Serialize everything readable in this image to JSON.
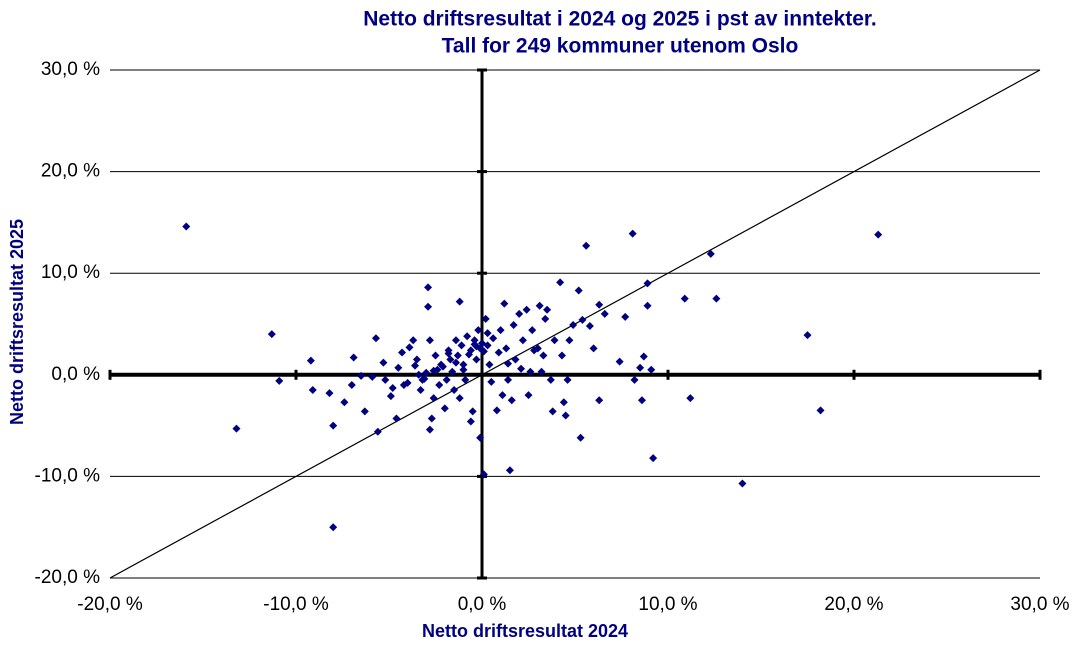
{
  "chart_data": {
    "type": "scatter",
    "title": [
      "Netto driftsresultat i 2024 og 2025 i pst av inntekter.",
      "Tall for 249 kommuner utenom Oslo"
    ],
    "x_label": "Netto driftsresultat 2024",
    "y_label": "Netto driftsresultat 2025",
    "color": "#000080",
    "grid": true,
    "xlim": [
      -20,
      30
    ],
    "ylim": [
      -20,
      30
    ],
    "xticks": [
      {
        "value": -20,
        "label": "-20,0 %"
      },
      {
        "value": -10,
        "label": "-10,0 %"
      },
      {
        "value": 0,
        "label": "0,0 %"
      },
      {
        "value": 10,
        "label": "10,0 %"
      },
      {
        "value": 20,
        "label": "20,0 %"
      },
      {
        "value": 30,
        "label": "30,0 %"
      }
    ],
    "yticks": [
      {
        "value": -20,
        "label": "-20,0 %"
      },
      {
        "value": -10,
        "label": "-10,0 %"
      },
      {
        "value": 0,
        "label": "0,0 %"
      },
      {
        "value": 10,
        "label": "10,0 %"
      },
      {
        "value": 20,
        "label": "20,0 %"
      },
      {
        "value": 30,
        "label": "30,0 %"
      }
    ],
    "x": [
      -15.9,
      -13.2,
      -11.3,
      -10.9,
      -9.2,
      -9.1,
      -8.0,
      -8.0,
      -8.2,
      -7.4,
      -6.9,
      -7.0,
      -6.5,
      -6.3,
      -5.7,
      -5.6,
      -5.3,
      -5.2,
      -4.9,
      -4.6,
      -4.5,
      -4.3,
      -4.2,
      -3.9,
      -3.7,
      -3.5,
      -3.4,
      -3.3,
      -3.2,
      -2.9,
      -2.9,
      -2.8,
      -2.8,
      -2.7,
      -2.6,
      -2.5,
      -2.4,
      -2.3,
      -2.2,
      -2.0,
      -1.9,
      -1.8,
      -1.7,
      -1.6,
      -1.5,
      -1.4,
      -1.3,
      -1.2,
      -1.2,
      -1.1,
      -1.0,
      -0.9,
      -0.8,
      -0.6,
      -0.6,
      -0.5,
      -0.4,
      -0.3,
      -0.2,
      -0.1,
      -0.1,
      0.1,
      0.2,
      0.3,
      0.4,
      0.5,
      0.8,
      0.9,
      1.0,
      1.1,
      1.2,
      1.3,
      1.4,
      1.5,
      1.6,
      1.7,
      1.8,
      2.0,
      2.2,
      2.4,
      2.5,
      2.6,
      2.7,
      2.8,
      3.0,
      3.1,
      3.2,
      3.3,
      3.4,
      3.5,
      3.7,
      3.8,
      3.9,
      4.2,
      4.3,
      4.4,
      4.5,
      4.6,
      4.7,
      4.9,
      5.2,
      5.3,
      5.4,
      5.6,
      5.8,
      6.0,
      6.3,
      6.3,
      6.6,
      7.4,
      7.7,
      8.1,
      8.2,
      8.5,
      8.6,
      8.7,
      8.9,
      8.9,
      9.1,
      9.2,
      10.9,
      11.2,
      12.3,
      12.6,
      14.0,
      17.5,
      18.2,
      21.3,
      -3.0,
      -2.1,
      -1.4,
      -0.7,
      0.0,
      0.6,
      -4.0,
      -3.6,
      -2.6,
      -1.8,
      -0.3,
      0.3,
      1.4,
      2.1,
      -1.0,
      -0.4,
      0.1,
      -5.9,
      -4.8,
      -3.1
    ],
    "values": [
      14.6,
      -5.3,
      4.0,
      -0.6,
      1.4,
      -1.5,
      -15.0,
      -5.0,
      -1.8,
      -2.7,
      1.7,
      -1.0,
      -0.1,
      -3.6,
      3.6,
      -5.6,
      1.2,
      -0.5,
      -2.1,
      -4.3,
      0.7,
      2.2,
      -1.0,
      2.7,
      3.4,
      1.5,
      0.0,
      -1.5,
      -0.5,
      8.6,
      6.7,
      3.4,
      -5.4,
      -4.3,
      -2.3,
      1.9,
      0.5,
      -1.0,
      1.0,
      -3.3,
      -0.5,
      2.4,
      1.5,
      0.3,
      -1.5,
      3.4,
      1.9,
      7.2,
      -2.3,
      2.9,
      1.0,
      -0.5,
      3.8,
      2.4,
      -4.6,
      -3.6,
      3.4,
      1.5,
      4.4,
      2.6,
      -6.2,
      -9.8,
      5.5,
      2.9,
      1.0,
      -0.7,
      -3.5,
      2.2,
      4.4,
      -2.0,
      7.0,
      2.6,
      -0.5,
      -9.4,
      -2.5,
      4.9,
      1.5,
      6.0,
      3.4,
      6.4,
      -2.0,
      0.3,
      4.4,
      2.4,
      2.6,
      6.8,
      0.3,
      1.9,
      5.5,
      6.4,
      -0.5,
      -3.6,
      3.4,
      9.1,
      1.9,
      -2.7,
      -4.0,
      -0.5,
      3.4,
      4.9,
      8.3,
      -6.2,
      5.4,
      12.7,
      4.8,
      2.6,
      6.9,
      -2.5,
      6.0,
      1.3,
      5.7,
      13.9,
      -0.5,
      0.7,
      -2.5,
      1.8,
      6.8,
      9.0,
      0.5,
      -8.2,
      7.5,
      -2.3,
      11.9,
      7.5,
      -10.7,
      3.9,
      -3.5,
      13.8,
      0.2,
      0.8,
      1.2,
      2.0,
      3.1,
      3.6,
      -0.8,
      0.9,
      0.4,
      2.1,
      2.8,
      4.1,
      1.1,
      0.6,
      0.5,
      3.0,
      2.3,
      -0.2,
      -1.3,
      -0.4
    ]
  }
}
